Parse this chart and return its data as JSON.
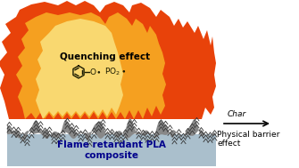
{
  "background_color": "#ffffff",
  "flame_outer_color": "#e8420a",
  "flame_inner_color": "#f5a020",
  "flame_core_color": "#f9d870",
  "char_color": "#888888",
  "char_line_color": "#333333",
  "composite_color": "#aabfcc",
  "composite_text": "Flame retardant PLA\ncomposite",
  "quenching_text": "Quenching effect",
  "char_label": "Char",
  "barrier_text": "Physical barrier effect",
  "arrow_color": "#000000",
  "text_dark": "#000000",
  "text_blue": "#00008b",
  "figw": 3.35,
  "figh": 1.89,
  "dpi": 100
}
